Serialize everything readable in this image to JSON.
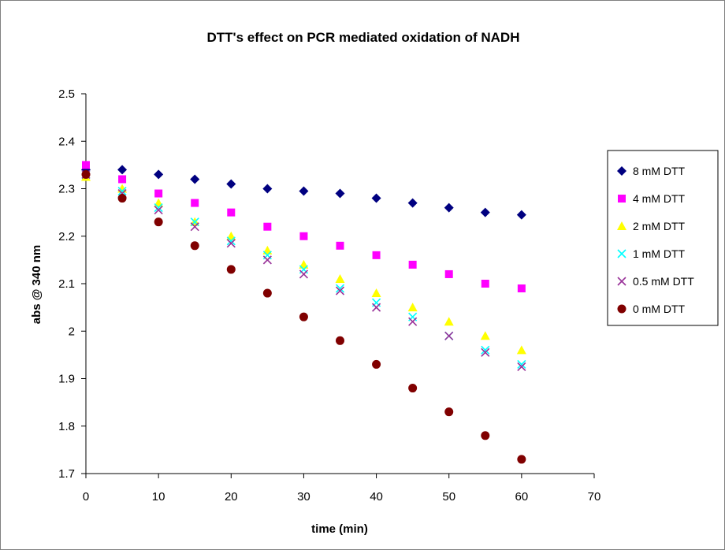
{
  "chart_data": {
    "type": "scatter",
    "title": "DTT's effect on PCR mediated oxidation of NADH",
    "xlabel": "time (min)",
    "ylabel": "abs @ 340 nm",
    "xlim": [
      0,
      70
    ],
    "ylim": [
      1.7,
      2.5
    ],
    "xticks": [
      "0",
      "10",
      "20",
      "30",
      "40",
      "50",
      "60",
      "70"
    ],
    "yticks": [
      "1.7",
      "1.8",
      "1.9",
      "2",
      "2.1",
      "2.2",
      "2.3",
      "2.4",
      "2.5"
    ],
    "grid": false,
    "legend_position": "right",
    "series": [
      {
        "name": "8 mM DTT",
        "color": "#000080",
        "marker": "diamond",
        "x": [
          0,
          5,
          10,
          15,
          20,
          25,
          30,
          35,
          40,
          45,
          50,
          55,
          60
        ],
        "y": [
          2.34,
          2.34,
          2.33,
          2.32,
          2.31,
          2.3,
          2.295,
          2.29,
          2.28,
          2.27,
          2.26,
          2.25,
          2.245
        ]
      },
      {
        "name": "4 mM DTT",
        "color": "#FF00FF",
        "marker": "square",
        "x": [
          0,
          5,
          10,
          15,
          20,
          25,
          30,
          35,
          40,
          45,
          50,
          55,
          60
        ],
        "y": [
          2.35,
          2.32,
          2.29,
          2.27,
          2.25,
          2.22,
          2.2,
          2.18,
          2.16,
          2.14,
          2.12,
          2.1,
          2.09
        ]
      },
      {
        "name": "2 mM DTT",
        "color": "#FFFF00",
        "marker": "triangle",
        "x": [
          0,
          5,
          10,
          15,
          20,
          25,
          30,
          35,
          40,
          45,
          50,
          55,
          60
        ],
        "y": [
          2.325,
          2.3,
          2.27,
          2.23,
          2.2,
          2.17,
          2.14,
          2.11,
          2.08,
          2.05,
          2.02,
          1.99,
          1.96
        ]
      },
      {
        "name": "1 mM DTT",
        "color": "#00FFFF",
        "marker": "x",
        "x": [
          0,
          5,
          10,
          15,
          20,
          25,
          30,
          35,
          40,
          45,
          50,
          55,
          60
        ],
        "y": [
          2.33,
          2.295,
          2.26,
          2.23,
          2.19,
          2.16,
          2.13,
          2.09,
          2.06,
          2.03,
          1.99,
          1.96,
          1.93
        ]
      },
      {
        "name": "0.5 mM DTT",
        "color": "#993399",
        "marker": "x",
        "x": [
          0,
          5,
          10,
          15,
          20,
          25,
          30,
          35,
          40,
          45,
          50,
          55,
          60
        ],
        "y": [
          2.33,
          2.29,
          2.255,
          2.22,
          2.185,
          2.15,
          2.12,
          2.085,
          2.05,
          2.02,
          1.99,
          1.955,
          1.925
        ]
      },
      {
        "name": "0 mM DTT",
        "color": "#800000",
        "marker": "circle",
        "x": [
          0,
          5,
          10,
          15,
          20,
          25,
          30,
          35,
          40,
          45,
          50,
          55,
          60
        ],
        "y": [
          2.33,
          2.28,
          2.23,
          2.18,
          2.13,
          2.08,
          2.03,
          1.98,
          1.93,
          1.88,
          1.83,
          1.78,
          1.73
        ]
      }
    ]
  }
}
